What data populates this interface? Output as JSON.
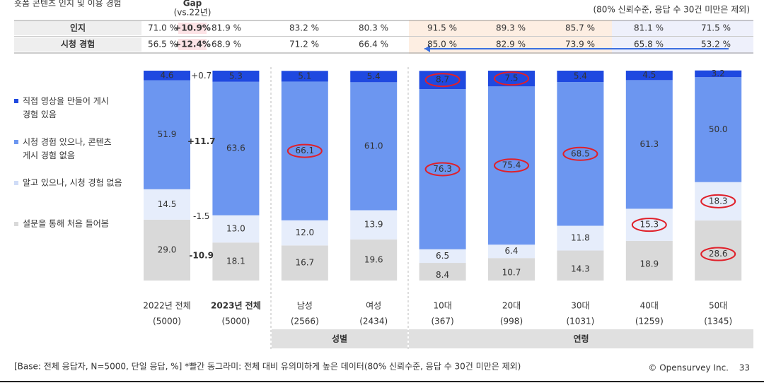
{
  "header": {
    "title": "숏폼 콘텐츠 인지 및 이용 경험",
    "gap_title": "Gap",
    "gap_subtitle": "(vs.22년)",
    "note": "(80% 신뢰수준, 응답 수 30건 미만은 제외)"
  },
  "table": {
    "rows": [
      {
        "label": "인지",
        "cells": [
          "71.0 %",
          "+10.9%",
          "81.9 %",
          "83.2 %",
          "80.3 %",
          "91.5 %",
          "89.3 %",
          "85.7 %",
          "81.1 %",
          "71.5 %"
        ]
      },
      {
        "label": "시청 경험",
        "cells": [
          "56.5 %",
          "+12.4%",
          "68.9 %",
          "71.2 %",
          "66.4 %",
          "85.0 %",
          "82.9 %",
          "73.9 %",
          "65.8 %",
          "53.2 %"
        ]
      }
    ]
  },
  "chart_data": {
    "type": "stacked_bar",
    "categories": [
      "2022년 전체",
      "2023년 전체",
      "남성",
      "여성",
      "10대",
      "20대",
      "30대",
      "40대",
      "50대"
    ],
    "sample_sizes": [
      "(5000)",
      "(5000)",
      "(2566)",
      "(2434)",
      "(367)",
      "(998)",
      "(1031)",
      "(1259)",
      "(1345)"
    ],
    "groups": [
      {
        "label": "성별",
        "from": 2,
        "to": 3
      },
      {
        "label": "연령",
        "from": 4,
        "to": 8
      }
    ],
    "ylim": [
      0,
      100
    ],
    "series": [
      {
        "name": "설문을 통해 처음 들어봄",
        "color": "#d9d9d9",
        "values": [
          29.0,
          18.1,
          16.7,
          19.6,
          8.4,
          10.7,
          14.3,
          18.9,
          28.6
        ],
        "value_labels": [
          "29.0",
          "18.1",
          "16.7",
          "19.6",
          "8.4",
          "10.7",
          "14.3",
          "18.9",
          "28.6"
        ],
        "gap": "-10.9",
        "gap_color": "#2e5fd8",
        "highlight": [
          8
        ]
      },
      {
        "name": "알고 있으나, 시청 경험 없음",
        "color": "#e6edfb",
        "values": [
          14.5,
          13.0,
          12.0,
          13.9,
          6.5,
          6.4,
          11.8,
          15.3,
          18.3
        ],
        "value_labels": [
          "14.5",
          "13.0",
          "12.0",
          "13.9",
          "6.5",
          "6.4",
          "11.8",
          "15.3",
          "18.3"
        ],
        "gap": "-1.5",
        "gap_color": "#666666",
        "highlight": [
          7,
          8
        ]
      },
      {
        "name": "시청 경험 있으나, 콘텐츠 게시 경험 없음",
        "color": "#6c96f0",
        "values": [
          51.9,
          63.6,
          66.1,
          61.0,
          76.3,
          75.4,
          68.5,
          61.3,
          50.0
        ],
        "value_labels": [
          "51.9",
          "63.6",
          "66.1",
          "61.0",
          "76.3",
          "75.4",
          "68.5",
          "61.3",
          "50.0"
        ],
        "gap": "+11.7",
        "gap_color": "#e0202a",
        "highlight": [
          2,
          4,
          5,
          6
        ]
      },
      {
        "name": "직접 영상을 만들어 게시 경험 있음",
        "color": "#1f49e0",
        "values": [
          4.6,
          5.3,
          5.1,
          5.4,
          8.7,
          7.5,
          5.4,
          4.5,
          3.2
        ],
        "value_labels": [
          "4.6",
          "5.3",
          "5.1",
          "5.4",
          "8.7",
          "7.5",
          "5.4",
          "4.5",
          "3.2"
        ],
        "gap": "+0.7",
        "gap_color": "#666666",
        "highlight": [
          4,
          5
        ]
      }
    ]
  },
  "footer": {
    "base": "[Base: 전체 응답자, N=5000, 단일 응답, %] *빨간 동그라미: 전체 대비 유의미하게 높은 데이터(80% 신뢰수준, 응답 수 30건 미만은 제외)",
    "company": "© Opensurvey Inc.",
    "page": "33"
  }
}
